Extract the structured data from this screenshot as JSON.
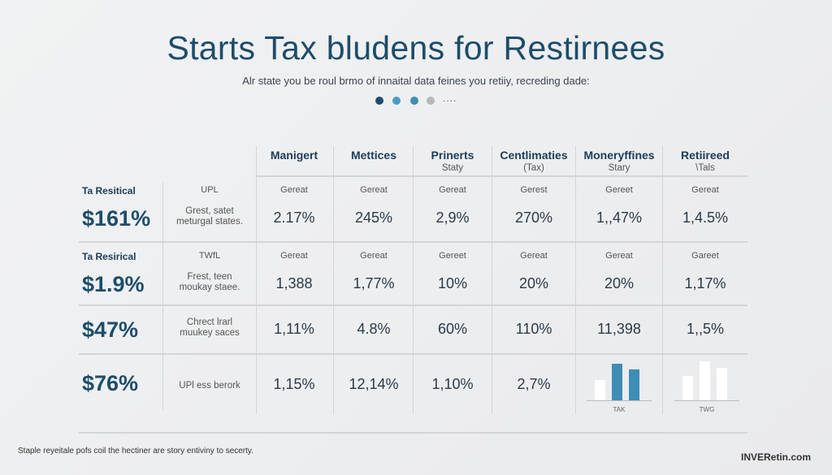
{
  "title": "Starts Tax bludens for Restirnees",
  "subtitle": "Alr state you be roul brmo of innaital data feines you retiiy, recreding dade:",
  "dots": {
    "colors": [
      "#1d4d6a",
      "#4a9cc0",
      "#3d8db5",
      "#b5b7ba"
    ],
    "more": "...."
  },
  "columns": [
    {
      "label": "Manigert",
      "sub": ""
    },
    {
      "label": "Mettices",
      "sub": ""
    },
    {
      "label": "Prinerts",
      "sub": "Staty"
    },
    {
      "label": "Centlimaties",
      "sub": "(Tax)"
    },
    {
      "label": "Moneryffines",
      "sub": "Stary"
    },
    {
      "label": "Retiireed",
      "sub": "\\Tals"
    }
  ],
  "rows": [
    {
      "label": "Ta Resitical",
      "big": "$161%",
      "cat": "UPL",
      "desc1": "Grest, satet",
      "desc2": "meturgal states.",
      "cells": [
        {
          "cat": "Gereat",
          "val": "2.17%"
        },
        {
          "cat": "Gereat",
          "val": "245%"
        },
        {
          "cat": "Gereat",
          "val": "2,9%"
        },
        {
          "cat": "Gerest",
          "val": "270%"
        },
        {
          "cat": "Gereet",
          "val": "1,,47%"
        },
        {
          "cat": "Gereat",
          "val": "1,4.5%"
        }
      ]
    },
    {
      "label": "Ta Resirical",
      "big": "$1.9%",
      "cat": "TWfL",
      "desc1": "Frest, teen",
      "desc2": "moukay staee.",
      "cells": [
        {
          "cat": "Gereat",
          "val": "1,388"
        },
        {
          "cat": "Gereat",
          "val": "1,77%"
        },
        {
          "cat": "Gereet",
          "val": "10%"
        },
        {
          "cat": "Gereat",
          "val": "20%"
        },
        {
          "cat": "Gereat",
          "val": "20%"
        },
        {
          "cat": "Gareet",
          "val": "1,17%"
        }
      ]
    },
    {
      "label": "",
      "big": "$47%",
      "cat": "",
      "desc1": "Chrect lrarl",
      "desc2": "muukey saces",
      "cells": [
        {
          "val": "1,11%"
        },
        {
          "val": "4.8%"
        },
        {
          "val": "60%"
        },
        {
          "val": "110%"
        },
        {
          "val": "11,398"
        },
        {
          "val": "1,,5%"
        }
      ]
    },
    {
      "label": "",
      "big": "$76%",
      "cat": "",
      "desc1": "UPl ess berork",
      "desc2": "",
      "cells": [
        {
          "val": "1,15%"
        },
        {
          "val": "12,14%"
        },
        {
          "val": "1,10%"
        },
        {
          "val": "2,7%"
        }
      ]
    }
  ],
  "minicharts": [
    {
      "label": "TAK",
      "values": [
        25,
        45,
        38
      ],
      "colors": [
        "#ffffff",
        "#3d8db5",
        "#3d8db5"
      ]
    },
    {
      "label": "TWG",
      "values": [
        30,
        48,
        40
      ],
      "colors": [
        "#ffffff",
        "#ffffff",
        "#ffffff"
      ]
    }
  ],
  "footnote": "Staple reyeitale pofs coil the hectiner are story entiviny to secerty.",
  "brand": "INVERetin.com"
}
